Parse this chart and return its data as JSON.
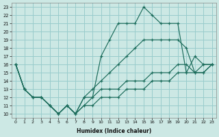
{
  "xlabel": "Humidex (Indice chaleur)",
  "bg_color": "#cce8e4",
  "grid_color": "#99cccc",
  "line_color": "#1a6b5a",
  "xlim": [
    -0.5,
    23.5
  ],
  "ylim": [
    9.5,
    23.5
  ],
  "xticks": [
    0,
    1,
    2,
    3,
    4,
    5,
    6,
    7,
    8,
    9,
    10,
    11,
    12,
    13,
    14,
    15,
    16,
    17,
    18,
    19,
    20,
    21,
    22,
    23
  ],
  "yticks": [
    10,
    11,
    12,
    13,
    14,
    15,
    16,
    17,
    18,
    19,
    20,
    21,
    22,
    23
  ],
  "series": [
    [
      16,
      13,
      12,
      12,
      11,
      10,
      11,
      10,
      11,
      12,
      17,
      19,
      21,
      21,
      21,
      23,
      22,
      21,
      21,
      21,
      15,
      17,
      16,
      16
    ],
    [
      16,
      13,
      12,
      12,
      11,
      10,
      11,
      10,
      12,
      13,
      14,
      15,
      16,
      17,
      18,
      19,
      19,
      19,
      19,
      19,
      18,
      15,
      16,
      16
    ],
    [
      16,
      13,
      12,
      12,
      11,
      10,
      11,
      10,
      12,
      12,
      13,
      13,
      13,
      14,
      14,
      14,
      15,
      15,
      15,
      16,
      16,
      15,
      15,
      16
    ],
    [
      16,
      13,
      12,
      12,
      11,
      10,
      11,
      10,
      11,
      11,
      12,
      12,
      12,
      13,
      13,
      13,
      14,
      14,
      14,
      15,
      15,
      15,
      15,
      16
    ]
  ]
}
